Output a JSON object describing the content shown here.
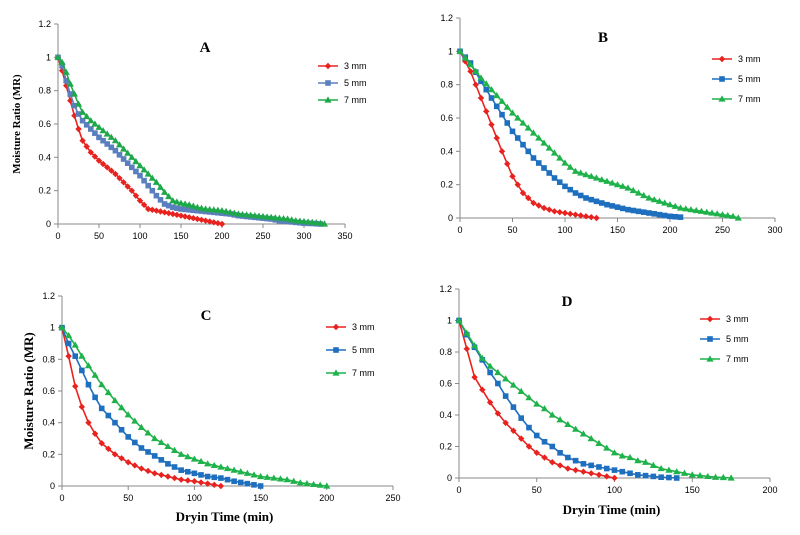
{
  "chart_data": [
    {
      "id": "A",
      "type": "line",
      "title": "A",
      "xlabel": "",
      "ylabel": "Moisture Ratio (MR)",
      "xlim": [
        0,
        350
      ],
      "ylim": [
        0,
        1.2
      ],
      "xticks": [
        "0",
        "50",
        "100",
        "150",
        "200",
        "250",
        "300",
        "350"
      ],
      "yticks": [
        "0",
        "0.2",
        "0.4",
        "0.6",
        "0.8",
        "1",
        "1.2"
      ],
      "legend_position": "top-right",
      "grid": false,
      "series": [
        {
          "name": "3 mm",
          "color": "#e8231f",
          "marker": "diamond",
          "step": 5,
          "x": [
            0,
            5,
            10,
            15,
            20,
            25,
            30,
            40,
            50,
            60,
            70,
            80,
            90,
            100,
            110,
            120,
            130,
            140,
            150,
            160,
            170,
            180,
            190,
            200
          ],
          "y": [
            1,
            0.92,
            0.83,
            0.74,
            0.65,
            0.57,
            0.5,
            0.43,
            0.38,
            0.34,
            0.3,
            0.25,
            0.2,
            0.14,
            0.09,
            0.08,
            0.07,
            0.06,
            0.05,
            0.04,
            0.03,
            0.02,
            0.01,
            0
          ]
        },
        {
          "name": "5 mm",
          "color": "#5b7fbe",
          "marker": "square",
          "step": 5,
          "x": [
            0,
            5,
            10,
            15,
            20,
            25,
            30,
            40,
            50,
            60,
            70,
            80,
            90,
            100,
            110,
            120,
            130,
            140,
            150,
            160,
            170,
            180,
            190,
            200,
            210,
            220,
            230,
            240,
            250,
            260,
            270,
            280,
            290,
            300,
            310,
            320
          ],
          "y": [
            1,
            0.95,
            0.86,
            0.78,
            0.71,
            0.66,
            0.62,
            0.57,
            0.52,
            0.48,
            0.44,
            0.39,
            0.34,
            0.29,
            0.23,
            0.17,
            0.12,
            0.1,
            0.09,
            0.085,
            0.08,
            0.075,
            0.07,
            0.065,
            0.06,
            0.05,
            0.045,
            0.04,
            0.035,
            0.03,
            0.02,
            0.015,
            0.01,
            0.005,
            0.003,
            0
          ]
        },
        {
          "name": "7 mm",
          "color": "#1fa84a",
          "marker": "triangle",
          "step": 5,
          "x": [
            0,
            5,
            10,
            15,
            20,
            25,
            30,
            40,
            50,
            60,
            70,
            80,
            90,
            100,
            110,
            120,
            130,
            140,
            150,
            160,
            170,
            180,
            190,
            200,
            210,
            220,
            230,
            240,
            250,
            260,
            270,
            280,
            290,
            300,
            310,
            320,
            325
          ],
          "y": [
            1,
            0.97,
            0.91,
            0.84,
            0.78,
            0.72,
            0.67,
            0.62,
            0.58,
            0.54,
            0.5,
            0.45,
            0.4,
            0.35,
            0.3,
            0.25,
            0.19,
            0.14,
            0.125,
            0.115,
            0.1,
            0.09,
            0.085,
            0.08,
            0.07,
            0.06,
            0.055,
            0.05,
            0.045,
            0.04,
            0.035,
            0.03,
            0.02,
            0.015,
            0.01,
            0.005,
            0
          ]
        }
      ]
    },
    {
      "id": "B",
      "type": "line",
      "title": "B",
      "xlabel": "",
      "ylabel": "",
      "xlim": [
        0,
        300
      ],
      "ylim": [
        0,
        1.2
      ],
      "xticks": [
        "0",
        "50",
        "100",
        "150",
        "200",
        "250",
        "300"
      ],
      "yticks": [
        "0",
        "0.2",
        "0.4",
        "0.6",
        "0.8",
        "1",
        "1.2"
      ],
      "legend_position": "top-right",
      "grid": false,
      "series": [
        {
          "name": "3 mm",
          "color": "#e8231f",
          "marker": "diamond",
          "step": 5,
          "x": [
            0,
            10,
            20,
            30,
            40,
            50,
            60,
            70,
            80,
            90,
            100,
            110,
            120,
            130
          ],
          "y": [
            1,
            0.88,
            0.72,
            0.56,
            0.4,
            0.25,
            0.15,
            0.09,
            0.06,
            0.04,
            0.03,
            0.02,
            0.01,
            0
          ]
        },
        {
          "name": "5 mm",
          "color": "#1f6fbf",
          "marker": "square",
          "step": 5,
          "x": [
            0,
            10,
            20,
            30,
            40,
            50,
            60,
            70,
            80,
            90,
            100,
            110,
            120,
            130,
            140,
            150,
            160,
            170,
            180,
            190,
            200,
            210
          ],
          "y": [
            1,
            0.93,
            0.82,
            0.72,
            0.62,
            0.52,
            0.44,
            0.36,
            0.3,
            0.24,
            0.19,
            0.15,
            0.12,
            0.1,
            0.08,
            0.065,
            0.05,
            0.04,
            0.03,
            0.02,
            0.01,
            0.005
          ]
        },
        {
          "name": "7 mm",
          "color": "#1fb24a",
          "marker": "triangle",
          "step": 5,
          "x": [
            0,
            10,
            20,
            30,
            40,
            50,
            60,
            70,
            80,
            90,
            100,
            110,
            120,
            130,
            140,
            150,
            160,
            170,
            180,
            190,
            200,
            210,
            220,
            230,
            240,
            250,
            260,
            265
          ],
          "y": [
            1,
            0.92,
            0.84,
            0.77,
            0.7,
            0.63,
            0.57,
            0.51,
            0.45,
            0.39,
            0.33,
            0.28,
            0.26,
            0.24,
            0.22,
            0.2,
            0.18,
            0.15,
            0.12,
            0.1,
            0.08,
            0.06,
            0.05,
            0.04,
            0.03,
            0.02,
            0.01,
            0
          ]
        }
      ]
    },
    {
      "id": "C",
      "type": "line",
      "title": "C",
      "xlabel": "Dryin Time (min)",
      "ylabel": "Moisture Ratio (MR)",
      "xlim": [
        0,
        250
      ],
      "ylim": [
        0,
        1.2
      ],
      "xticks": [
        "0",
        "50",
        "100",
        "150",
        "200",
        "250"
      ],
      "yticks": [
        "0",
        "0.2",
        "0.4",
        "0.6",
        "0.8",
        "1",
        "1.2"
      ],
      "legend_position": "top-right",
      "grid": false,
      "series": [
        {
          "name": "3 mm",
          "color": "#e8231f",
          "marker": "diamond",
          "step": 5,
          "x": [
            0,
            5,
            10,
            15,
            20,
            25,
            30,
            40,
            50,
            60,
            70,
            80,
            90,
            100,
            110,
            120
          ],
          "y": [
            1,
            0.82,
            0.63,
            0.5,
            0.4,
            0.33,
            0.27,
            0.2,
            0.15,
            0.11,
            0.08,
            0.06,
            0.04,
            0.03,
            0.015,
            0
          ]
        },
        {
          "name": "5 mm",
          "color": "#1f6fbf",
          "marker": "square",
          "step": 5,
          "x": [
            0,
            5,
            10,
            15,
            20,
            25,
            30,
            40,
            50,
            60,
            70,
            80,
            90,
            100,
            110,
            120,
            130,
            140,
            150
          ],
          "y": [
            1,
            0.9,
            0.82,
            0.73,
            0.64,
            0.56,
            0.49,
            0.4,
            0.31,
            0.24,
            0.19,
            0.14,
            0.1,
            0.08,
            0.06,
            0.05,
            0.03,
            0.015,
            0
          ]
        },
        {
          "name": "7 mm",
          "color": "#1fb24a",
          "marker": "triangle",
          "step": 5,
          "x": [
            0,
            5,
            10,
            15,
            20,
            25,
            30,
            40,
            50,
            60,
            70,
            80,
            90,
            100,
            110,
            120,
            130,
            140,
            150,
            160,
            170,
            180,
            190,
            200
          ],
          "y": [
            1,
            0.95,
            0.89,
            0.82,
            0.76,
            0.7,
            0.64,
            0.54,
            0.45,
            0.37,
            0.3,
            0.25,
            0.2,
            0.17,
            0.14,
            0.12,
            0.1,
            0.08,
            0.06,
            0.05,
            0.04,
            0.02,
            0.01,
            0
          ]
        }
      ]
    },
    {
      "id": "D",
      "type": "line",
      "title": "D",
      "xlabel": "Dryin Time (min)",
      "ylabel": "",
      "xlim": [
        0,
        200
      ],
      "ylim": [
        0,
        1.2
      ],
      "xticks": [
        "0",
        "50",
        "100",
        "150",
        "200"
      ],
      "yticks": [
        "0",
        "0.2",
        "0.4",
        "0.6",
        "0.8",
        "1",
        "1.2"
      ],
      "legend_position": "top-right",
      "grid": false,
      "series": [
        {
          "name": "3 mm",
          "color": "#e8231f",
          "marker": "diamond",
          "step": 5,
          "x": [
            0,
            5,
            10,
            15,
            20,
            25,
            30,
            35,
            40,
            45,
            50,
            55,
            60,
            65,
            70,
            75,
            80,
            85,
            90,
            95,
            100
          ],
          "y": [
            1,
            0.82,
            0.64,
            0.56,
            0.48,
            0.41,
            0.35,
            0.3,
            0.25,
            0.2,
            0.16,
            0.13,
            0.1,
            0.08,
            0.06,
            0.05,
            0.04,
            0.03,
            0.02,
            0.01,
            0
          ]
        },
        {
          "name": "5 mm",
          "color": "#1f6fbf",
          "marker": "square",
          "step": 5,
          "x": [
            0,
            5,
            10,
            15,
            20,
            25,
            30,
            35,
            40,
            45,
            50,
            55,
            60,
            65,
            70,
            75,
            80,
            85,
            90,
            95,
            100,
            105,
            110,
            115,
            120,
            125,
            130,
            135,
            140
          ],
          "y": [
            1,
            0.91,
            0.83,
            0.75,
            0.67,
            0.6,
            0.52,
            0.45,
            0.38,
            0.32,
            0.27,
            0.23,
            0.2,
            0.16,
            0.13,
            0.11,
            0.09,
            0.08,
            0.07,
            0.06,
            0.05,
            0.04,
            0.03,
            0.02,
            0.015,
            0.01,
            0.005,
            0.003,
            0
          ]
        },
        {
          "name": "7 mm",
          "color": "#1fb24a",
          "marker": "triangle",
          "step": 5,
          "x": [
            0,
            5,
            10,
            15,
            20,
            25,
            30,
            35,
            40,
            45,
            50,
            55,
            60,
            65,
            70,
            75,
            80,
            85,
            90,
            95,
            100,
            105,
            110,
            115,
            120,
            125,
            130,
            135,
            140,
            145,
            150,
            155,
            160,
            165,
            170,
            175
          ],
          "y": [
            1,
            0.92,
            0.84,
            0.76,
            0.71,
            0.67,
            0.63,
            0.59,
            0.55,
            0.51,
            0.47,
            0.44,
            0.4,
            0.37,
            0.34,
            0.31,
            0.28,
            0.25,
            0.22,
            0.19,
            0.16,
            0.14,
            0.13,
            0.11,
            0.1,
            0.08,
            0.06,
            0.05,
            0.04,
            0.03,
            0.02,
            0.015,
            0.01,
            0.005,
            0.003,
            0
          ]
        }
      ]
    }
  ]
}
